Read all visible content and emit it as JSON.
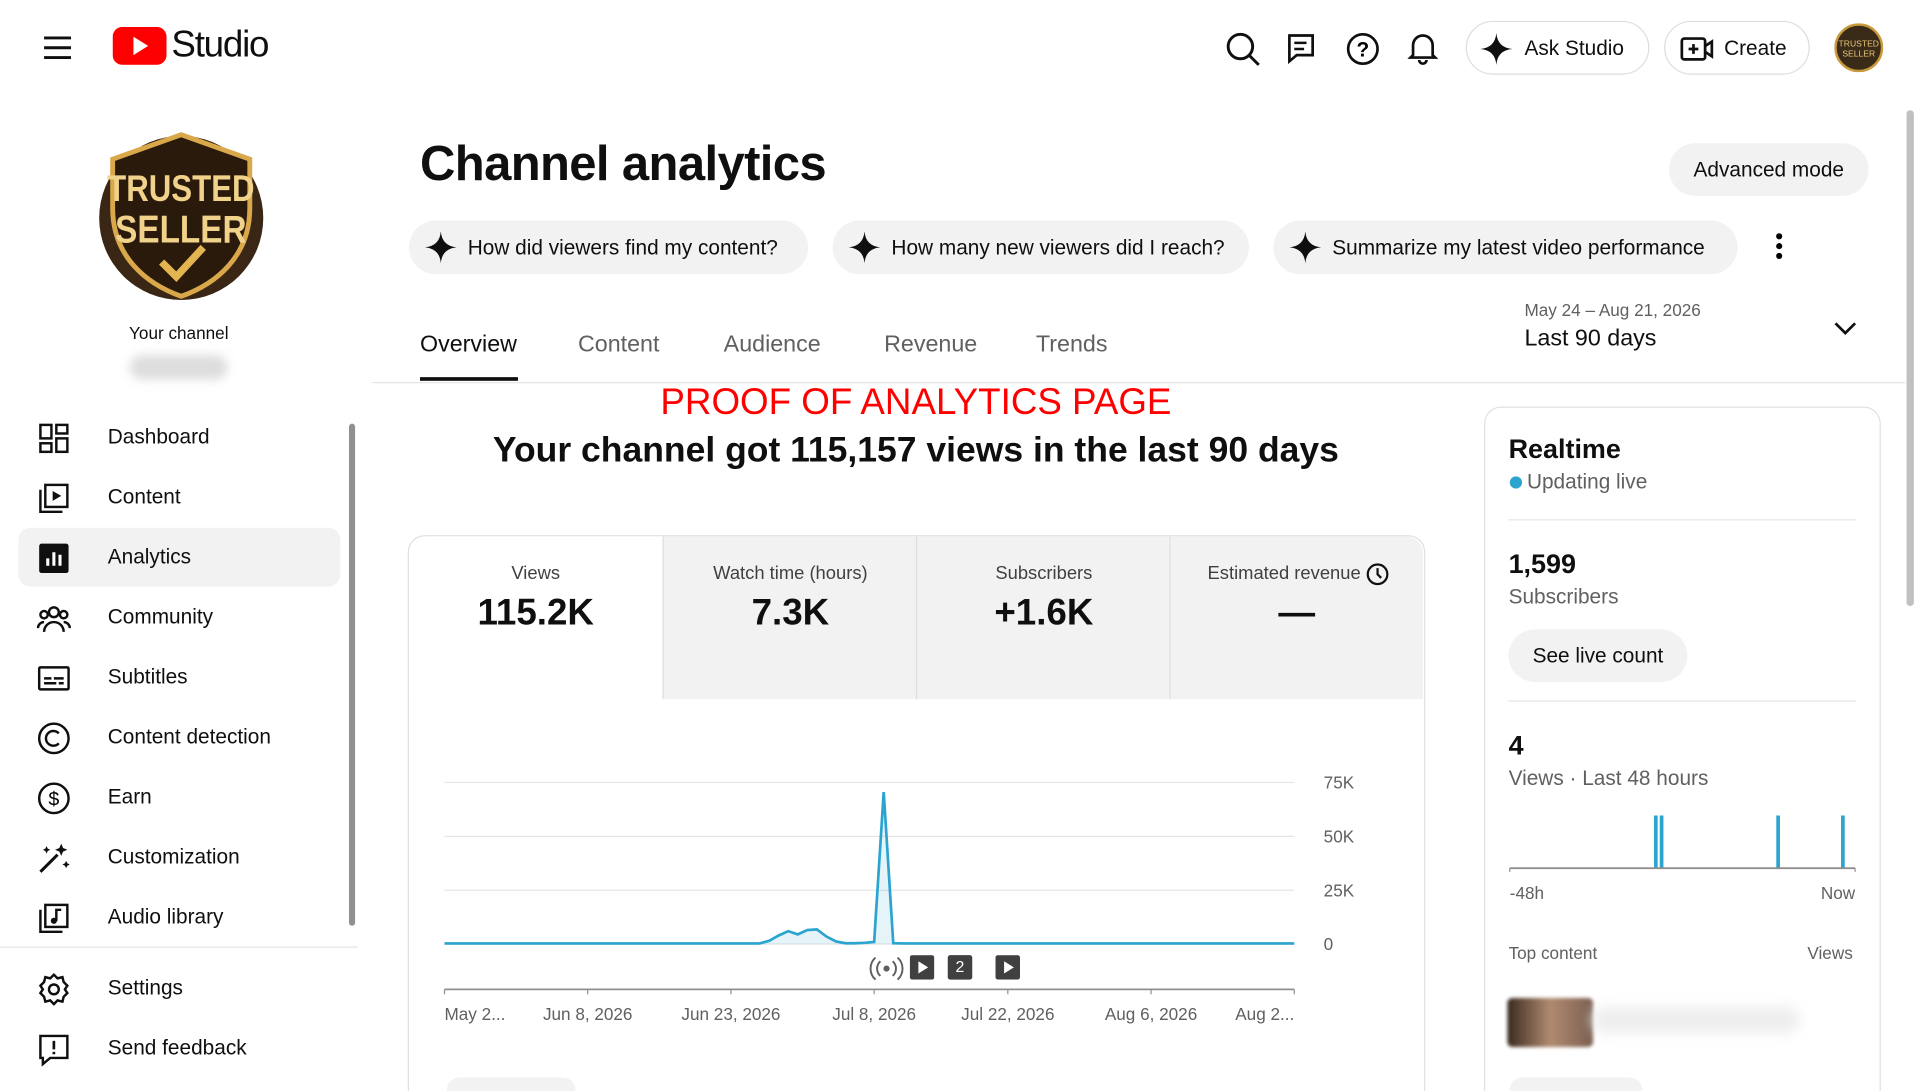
{
  "header": {
    "logo": "Studio",
    "ask": "Ask Studio",
    "create": "Create"
  },
  "channel": {
    "avatar_text": [
      "TRUSTED",
      "SELLER"
    ],
    "label": "Your channel"
  },
  "sidebar": {
    "items": [
      "Dashboard",
      "Content",
      "Analytics",
      "Community",
      "Subtitles",
      "Content detection",
      "Earn",
      "Customization",
      "Audio library"
    ],
    "footer": [
      "Settings",
      "Send feedback"
    ]
  },
  "main": {
    "title": "Channel analytics",
    "advanced": "Advanced mode",
    "chips": [
      "How did viewers find my content?",
      "How many new viewers did I reach?",
      "Summarize my latest video performance"
    ],
    "date_range": "May 24 – Aug 21, 2026",
    "period": "Last 90 days",
    "tabs": [
      "Overview",
      "Content",
      "Audience",
      "Revenue",
      "Trends"
    ],
    "annotation": "PROOF OF ANALYTICS PAGE",
    "headline": "Your channel got 115,157 views in the last 90 days",
    "metrics": [
      {
        "label": "Views",
        "value": "115.2K"
      },
      {
        "label": "Watch time (hours)",
        "value": "7.3K"
      },
      {
        "label": "Subscribers",
        "value": "+1.6K"
      },
      {
        "label": "Estimated revenue",
        "value": "—"
      }
    ],
    "marker_count": "2"
  },
  "realtime": {
    "title": "Realtime",
    "status": "Updating live",
    "subscribers": "1,599",
    "subscribers_label": "Subscribers",
    "button": "See live count",
    "views": "4",
    "views_label": "Views · Last 48 hours",
    "top_content": "Top content",
    "views_col": "Views"
  },
  "chart_data": [
    {
      "type": "line",
      "color": "#2ba4d0",
      "x": [
        "2026-05-24",
        "2026-06-26",
        "2026-06-27",
        "2026-06-28",
        "2026-06-29",
        "2026-06-30",
        "2026-07-01",
        "2026-07-02",
        "2026-07-03",
        "2026-07-04",
        "2026-07-05",
        "2026-07-06",
        "2026-07-07",
        "2026-07-08",
        "2026-07-09",
        "2026-07-10",
        "2026-07-11",
        "2026-08-21"
      ],
      "values": [
        300,
        300,
        1500,
        4000,
        6000,
        4500,
        6500,
        6800,
        3500,
        1200,
        400,
        400,
        600,
        1000,
        70500,
        400,
        300,
        300
      ],
      "xlim": [
        "2026-05-24",
        "2026-08-21"
      ],
      "xticks": [
        {
          "value": "2026-05-24",
          "label": "May 2..."
        },
        {
          "value": "2026-06-08",
          "label": "Jun 8, 2026"
        },
        {
          "value": "2026-06-23",
          "label": "Jun 23, 2026"
        },
        {
          "value": "2026-07-08",
          "label": "Jul 8, 2026"
        },
        {
          "value": "2026-07-22",
          "label": "Jul 22, 2026"
        },
        {
          "value": "2026-08-06",
          "label": "Aug 6, 2026"
        },
        {
          "value": "2026-08-21",
          "label": "Aug 2..."
        }
      ],
      "ylim": [
        0,
        75000
      ],
      "yticks": [
        0,
        {
          "value": 25000,
          "label": "25K"
        },
        {
          "value": 50000,
          "label": "50K"
        },
        {
          "value": 75000,
          "label": "75K"
        }
      ],
      "grid": true
    },
    {
      "type": "bar",
      "color": "#2ba4d0",
      "x": [
        -27.7,
        -26.9,
        -10.7,
        -1.7
      ],
      "values": [
        1,
        1,
        1,
        1
      ],
      "xlim": [
        -48,
        0
      ],
      "ylim": [
        0,
        1
      ],
      "xticks": [
        {
          "value": -48,
          "label": "-48h"
        },
        {
          "value": 0,
          "label": "Now"
        }
      ]
    }
  ]
}
